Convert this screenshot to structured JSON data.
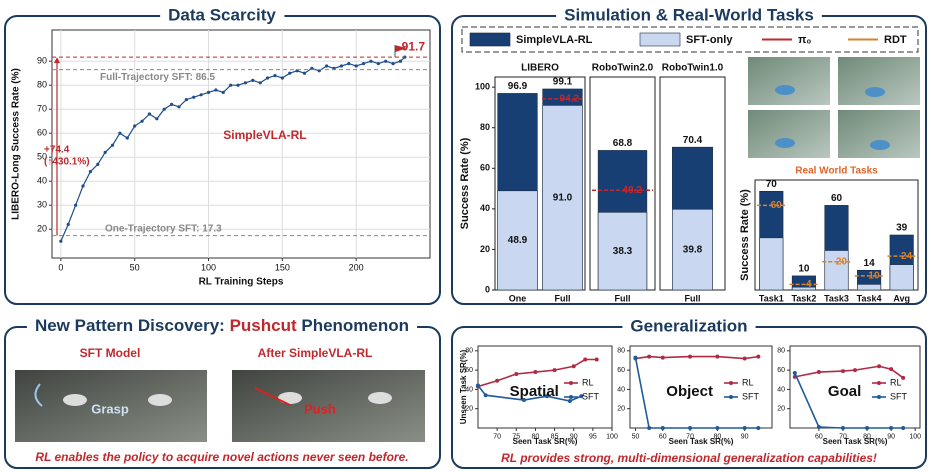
{
  "panels": {
    "data_scarcity": {
      "title": "Data Scarcity"
    },
    "simulation": {
      "title": "Simulation & Real-World Tasks"
    },
    "pushcut": {
      "title_parts": [
        "New Pattern Discovery: ",
        "Pushcut",
        " Phenomenon"
      ],
      "left_label": "SFT Model",
      "right_label": "After SimpleVLA-RL",
      "left_action": "Grasp",
      "right_action": "Push",
      "caption": "RL enables the policy to acquire novel actions never seen before."
    },
    "generalization": {
      "title": "Generalization",
      "caption": "RL provides strong, multi-dimensional generalization capabilities!"
    }
  },
  "chart_data": [
    {
      "type": "line",
      "xlabel": "RL Training Steps",
      "ylabel": "LIBERO-Long Success Rate (%)",
      "x": [
        0,
        5,
        10,
        15,
        20,
        25,
        30,
        35,
        40,
        45,
        50,
        55,
        60,
        65,
        70,
        75,
        80,
        85,
        90,
        95,
        100,
        105,
        110,
        115,
        120,
        125,
        130,
        135,
        140,
        145,
        150,
        155,
        160,
        165,
        170,
        175,
        180,
        185,
        190,
        195,
        200,
        205,
        210,
        215,
        220,
        225,
        230,
        233
      ],
      "series": [
        {
          "name": "SimpleVLA-RL",
          "color": "#1f4e8c",
          "values": [
            15,
            22,
            30,
            38,
            44,
            47,
            52,
            55,
            60,
            58,
            63,
            65,
            68,
            66,
            70,
            72,
            71,
            74,
            75,
            76,
            77,
            78,
            77,
            80,
            80,
            81,
            82,
            81,
            83,
            84,
            83,
            85,
            86,
            85,
            87,
            86,
            88,
            87,
            88,
            89,
            88,
            89,
            90,
            89,
            90,
            89,
            90,
            91.7
          ]
        }
      ],
      "xlim": [
        -6,
        250
      ],
      "ylim": [
        8,
        103
      ],
      "xticks": [
        0,
        50,
        100,
        150,
        200
      ],
      "yticks": [
        20,
        30,
        40,
        50,
        60,
        70,
        80,
        90
      ],
      "grid": true,
      "ref_lines": [
        {
          "value": 86.5,
          "label": "Full-Trajectory SFT: 86.5",
          "color": "#888888"
        },
        {
          "value": 17.3,
          "label": "One-Trajectory SFT: 17.3",
          "color": "#888888"
        },
        {
          "value": 91.7,
          "label": "91.7",
          "color": "#c0282d"
        }
      ],
      "gain_label": [
        "+74.4",
        "(↑430.1%)"
      ]
    },
    {
      "type": "bar",
      "title": "LIBERO",
      "ylabel": "Success Rate (%)",
      "categories": [
        "One",
        "Full"
      ],
      "ylim": [
        0,
        105
      ],
      "yticks": [
        0,
        20,
        40,
        60,
        80,
        100
      ],
      "series": [
        {
          "name": "SimpleVLA-RL",
          "color": "#173f73",
          "values": [
            96.9,
            99.1
          ],
          "labels": true
        },
        {
          "name": "SFT-only",
          "color": "#c9d8f0",
          "values": [
            48.9,
            91.0
          ],
          "value_labels": [
            "48.9",
            "91.0"
          ],
          "labels": true
        },
        {
          "name": "π₀",
          "color": "#c0282d",
          "values": [
            null,
            94.2
          ],
          "style": "dashed",
          "labels": true
        }
      ]
    },
    {
      "type": "bar",
      "title": "RoboTwin2.0",
      "categories": [
        "Full"
      ],
      "ylim": [
        0,
        105
      ],
      "series": [
        {
          "color": "#173f73",
          "values": [
            68.8
          ],
          "labels": true
        },
        {
          "color": "#c9d8f0",
          "values": [
            38.3
          ],
          "labels": true
        },
        {
          "color": "#c0282d",
          "values": [
            49.2
          ],
          "style": "dashed",
          "labels": true
        }
      ]
    },
    {
      "type": "bar",
      "title": "RoboTwin1.0",
      "categories": [
        "Full"
      ],
      "ylim": [
        0,
        105
      ],
      "series": [
        {
          "color": "#173f73",
          "values": [
            70.4
          ],
          "labels": true
        },
        {
          "color": "#c9d8f0",
          "values": [
            39.8
          ],
          "labels": true
        }
      ]
    },
    {
      "type": "bar",
      "title": "Real World Tasks",
      "title_color": "#e0652a",
      "ylabel": "Success Rate (%)",
      "categories": [
        "Task1",
        "Task2",
        "Task3",
        "Task4",
        "Avg"
      ],
      "ylim": [
        0,
        78
      ],
      "series": [
        {
          "color": "#173f73",
          "values": [
            70,
            10,
            60,
            14,
            39
          ],
          "labels": true
        },
        {
          "color": "#c9d8f0",
          "values": [
            37,
            2,
            28,
            4,
            18
          ]
        },
        {
          "name": "RDT",
          "color": "#d9822b",
          "values": [
            60,
            4,
            20,
            10,
            24
          ],
          "style": "dashed",
          "labels": true
        }
      ]
    },
    {
      "type": "line",
      "title": "Spatial",
      "xlabel": "Seen Task SR(%)",
      "ylabel": "Unseen Task SR(%)",
      "xlim": [
        65,
        100
      ],
      "ylim": [
        0,
        85
      ],
      "xticks": [
        70,
        75,
        80,
        85,
        90,
        95,
        100
      ],
      "yticks": [
        20,
        40,
        60,
        80
      ],
      "series": [
        {
          "name": "RL",
          "color": "#b02a45",
          "x": [
            65,
            70,
            75,
            80,
            85,
            90,
            93,
            96
          ],
          "values": [
            43,
            49,
            56,
            58,
            60,
            64,
            71,
            71
          ]
        },
        {
          "name": "SFT",
          "color": "#1f5a9a",
          "x": [
            65,
            67,
            77,
            83,
            89,
            92
          ],
          "values": [
            44,
            34,
            29,
            33,
            28,
            33
          ]
        }
      ]
    },
    {
      "type": "line",
      "title": "Object",
      "xlabel": "Seen Task SR(%)",
      "xlim": [
        48,
        100
      ],
      "ylim": [
        0,
        85
      ],
      "xticks": [
        50,
        60,
        70,
        80,
        90
      ],
      "yticks": [
        20,
        40,
        60,
        80
      ],
      "series": [
        {
          "name": "RL",
          "color": "#b02a45",
          "x": [
            50,
            55,
            60,
            70,
            80,
            90,
            95
          ],
          "values": [
            72,
            74,
            73,
            74,
            74,
            72,
            74
          ]
        },
        {
          "name": "SFT",
          "color": "#1f5a9a",
          "x": [
            50,
            55,
            60,
            70,
            80,
            90,
            95
          ],
          "values": [
            73,
            0,
            0,
            0,
            0,
            0,
            0
          ]
        }
      ]
    },
    {
      "type": "line",
      "title": "Goal",
      "xlabel": "Seen Task SR(%)",
      "xlim": [
        48,
        102
      ],
      "ylim": [
        0,
        85
      ],
      "xticks": [
        60,
        70,
        80,
        90,
        100
      ],
      "yticks": [
        20,
        40,
        60,
        80
      ],
      "series": [
        {
          "name": "RL",
          "color": "#b02a45",
          "x": [
            50,
            60,
            70,
            75,
            85,
            90,
            95
          ],
          "values": [
            53,
            58,
            59,
            60,
            64,
            61,
            52
          ]
        },
        {
          "name": "SFT",
          "color": "#1f5a9a",
          "x": [
            50,
            60,
            70,
            80,
            90,
            95
          ],
          "values": [
            57,
            1,
            0,
            0,
            0,
            0
          ]
        }
      ]
    }
  ]
}
